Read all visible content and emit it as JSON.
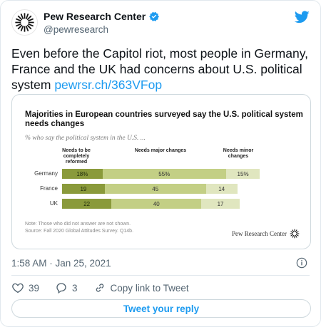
{
  "author": {
    "name": "Pew Research Center",
    "handle": "@pewresearch"
  },
  "tweet": {
    "text": "Even before the Capitol riot, most people in Germany, France and the UK had concerns about U.S. political system",
    "link": "pewrsr.ch/363VFop",
    "timestamp": "1:58 AM · Jan 25, 2021"
  },
  "card": {
    "title": "Majorities in European countries surveyed say the U.S. political system needs changes",
    "subtitle": "% who say the political system in the U.S. ...",
    "col_headers": [
      "Needs to be completely reformed",
      "Needs major changes",
      "Needs minor changes"
    ],
    "note": "Note: Those who did not answer are not shown.",
    "source": "Source: Fall 2020 Global Attitudes Survey. Q14b.",
    "logo_text": "Pew Research Center"
  },
  "chart_data": {
    "type": "bar",
    "title": "Majorities in European countries surveyed say the U.S. political system needs changes",
    "subtitle": "% who say the political system in the U.S. ...",
    "categories": [
      "Germany",
      "France",
      "UK"
    ],
    "series": [
      {
        "name": "Needs to be completely reformed",
        "values": [
          18,
          19,
          22
        ],
        "labels": [
          "18%",
          "19",
          "22"
        ],
        "color": "#8a9a3b"
      },
      {
        "name": "Needs major changes",
        "values": [
          55,
          45,
          40
        ],
        "labels": [
          "55%",
          "45",
          "40"
        ],
        "color": "#c3cf85"
      },
      {
        "name": "Needs minor changes",
        "values": [
          15,
          14,
          17
        ],
        "labels": [
          "15%",
          "14",
          "17"
        ],
        "color": "#e0e6bf"
      }
    ],
    "stacked": true,
    "orientation": "horizontal"
  },
  "actions": {
    "likes": "39",
    "replies": "3",
    "copy_link": "Copy link to Tweet",
    "reply_button": "Tweet your reply"
  },
  "colors": {
    "accent": "#1d9bf0",
    "text": "#0f1419",
    "muted": "#536471"
  }
}
